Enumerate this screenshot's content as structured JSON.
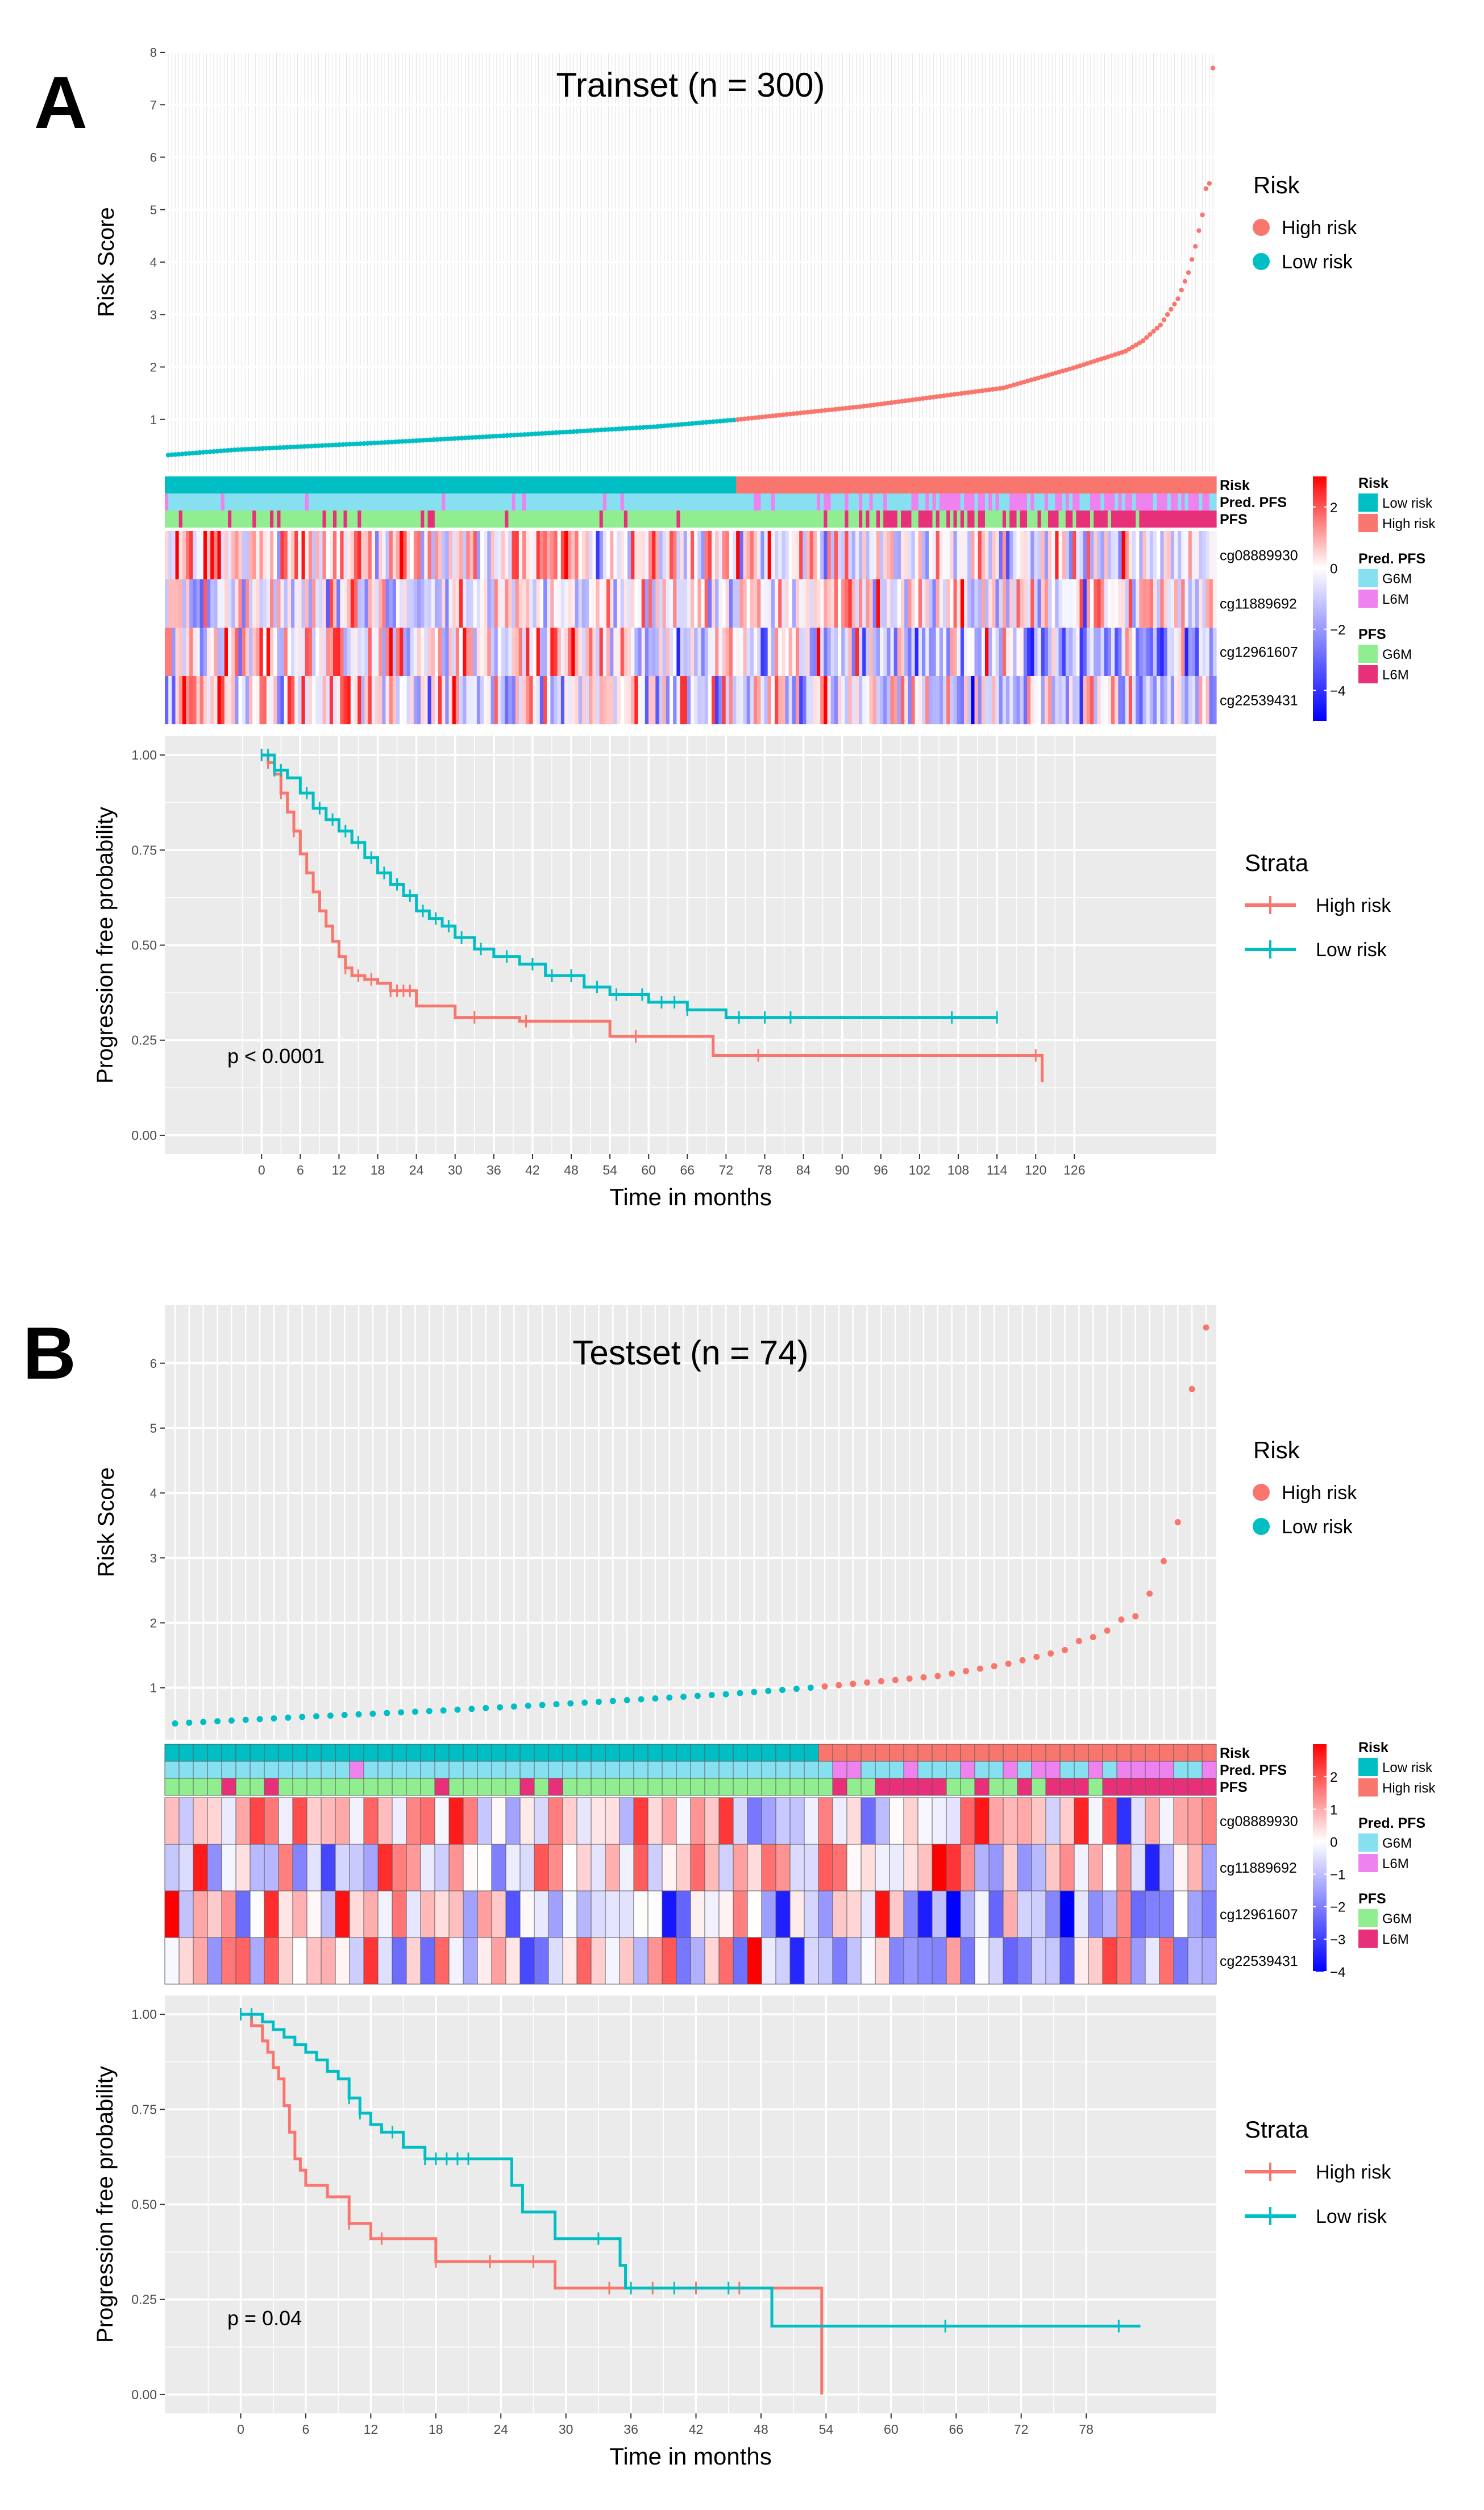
{
  "colors": {
    "high": "#F8766D",
    "low": "#00BFC4",
    "panel_bg": "#EBEBEB",
    "grid": "#FFFFFF",
    "heat_red": "#FF0000",
    "heat_white": "#FFFFFF",
    "heat_blue": "#0000FF",
    "g6m_pred": "#87E0F0",
    "l6m_pred": "#EE82EE",
    "g6m_pfs": "#90EE90",
    "l6m_pfs": "#E8307A"
  },
  "chart_data": [
    {
      "panel": "A",
      "type": "scatter",
      "title": "Trainset (n = 300)",
      "xlabel": "",
      "ylabel": "Risk Score",
      "n": 300,
      "n_low": 163,
      "x_range": [
        1,
        300
      ],
      "ylim": [
        0,
        8
      ],
      "yticks": [
        1,
        2,
        3,
        4,
        5,
        6,
        7,
        8
      ],
      "grid": true,
      "legend": {
        "title": "Risk",
        "entries": [
          "High risk",
          "Low risk"
        ],
        "position": "right"
      },
      "score_anchors": {
        "index": [
          1,
          20,
          60,
          100,
          140,
          163,
          200,
          240,
          260,
          275,
          280,
          285,
          290,
          293,
          295,
          297,
          298,
          299,
          300
        ],
        "score": [
          0.32,
          0.42,
          0.55,
          0.7,
          0.86,
          0.99,
          1.25,
          1.6,
          1.98,
          2.3,
          2.5,
          2.8,
          3.3,
          3.8,
          4.3,
          4.9,
          5.4,
          5.5,
          7.7
        ]
      }
    },
    {
      "panel": "A",
      "type": "heatmap",
      "n": 300,
      "n_low": 163,
      "annotation_rows": [
        "Risk",
        "Pred. PFS",
        "PFS"
      ],
      "rows": [
        "cg08889930",
        "cg11889692",
        "cg12961607",
        "cg22539431"
      ],
      "color_scale": {
        "min": -5,
        "mid": 0,
        "max": 3,
        "ticks": [
          2,
          0,
          -2,
          -4
        ]
      },
      "legends": [
        {
          "title": "Risk",
          "entries": [
            "Low risk",
            "High risk"
          ]
        },
        {
          "title": "Pred. PFS",
          "entries": [
            "G6M",
            "L6M"
          ]
        },
        {
          "title": "PFS",
          "entries": [
            "G6M",
            "L6M"
          ]
        }
      ]
    },
    {
      "panel": "A",
      "type": "line",
      "xlabel": "Time in months",
      "ylabel": "Progression free probability",
      "xlim": [
        -15,
        148
      ],
      "xticks": [
        0,
        6,
        12,
        18,
        24,
        30,
        36,
        42,
        48,
        54,
        60,
        66,
        72,
        78,
        84,
        90,
        96,
        102,
        108,
        114,
        120,
        126
      ],
      "ylim": [
        0,
        1
      ],
      "yticks": [
        "0.00",
        "0.25",
        "0.50",
        "0.75",
        "1.00"
      ],
      "pvalue": "p < 0.0001",
      "legend": {
        "title": "Strata",
        "entries": [
          "High risk",
          "Low risk"
        ],
        "position": "right"
      },
      "series": [
        {
          "name": "High risk",
          "x": [
            0,
            1,
            2,
            3,
            4,
            5,
            6,
            7,
            8,
            9,
            10,
            11,
            12,
            13,
            14,
            16,
            18,
            20,
            24,
            30,
            40,
            54,
            70,
            121
          ],
          "y": [
            1.0,
            0.98,
            0.95,
            0.9,
            0.85,
            0.8,
            0.74,
            0.69,
            0.64,
            0.59,
            0.55,
            0.51,
            0.47,
            0.44,
            0.42,
            0.41,
            0.4,
            0.38,
            0.34,
            0.31,
            0.3,
            0.26,
            0.21,
            0.14
          ],
          "censor_x": [
            0,
            1,
            3,
            5,
            13,
            15,
            17,
            20,
            21,
            22,
            23,
            33,
            41,
            58,
            77,
            120
          ]
        },
        {
          "name": "Low risk",
          "x": [
            0,
            2,
            4,
            6,
            8,
            10,
            12,
            14,
            16,
            18,
            20,
            22,
            24,
            26,
            28,
            30,
            33,
            36,
            40,
            44,
            50,
            54,
            60,
            66,
            72,
            114
          ],
          "y": [
            1.0,
            0.96,
            0.94,
            0.9,
            0.86,
            0.83,
            0.8,
            0.77,
            0.73,
            0.69,
            0.66,
            0.63,
            0.59,
            0.57,
            0.55,
            0.52,
            0.49,
            0.47,
            0.45,
            0.42,
            0.39,
            0.37,
            0.35,
            0.33,
            0.31,
            0.31
          ],
          "censor_x": [
            0,
            1,
            2,
            3,
            7,
            9,
            11,
            13,
            15,
            17,
            19,
            21,
            23,
            25,
            27,
            29,
            31,
            34,
            38,
            42,
            45,
            48,
            52,
            55,
            59,
            62,
            64,
            66,
            74,
            78,
            82,
            107,
            114
          ]
        }
      ]
    },
    {
      "panel": "B",
      "type": "scatter",
      "title": "Testset (n = 74)",
      "xlabel": "",
      "ylabel": "Risk Score",
      "n": 74,
      "n_low": 46,
      "x_range": [
        1,
        74
      ],
      "ylim": [
        0.2,
        6.9
      ],
      "yticks": [
        1,
        2,
        3,
        4,
        5,
        6
      ],
      "grid": true,
      "legend": {
        "title": "Risk",
        "entries": [
          "High risk",
          "Low risk"
        ],
        "position": "right"
      },
      "score_anchors": {
        "index": [
          1,
          10,
          20,
          30,
          40,
          46,
          47,
          55,
          60,
          64,
          65,
          66,
          67,
          68,
          69,
          70,
          71,
          72,
          73,
          74
        ],
        "score": [
          0.45,
          0.55,
          0.65,
          0.77,
          0.9,
          1.0,
          1.02,
          1.18,
          1.37,
          1.58,
          1.72,
          1.78,
          1.88,
          2.05,
          2.1,
          2.45,
          2.95,
          3.55,
          5.6,
          6.55
        ]
      }
    },
    {
      "panel": "B",
      "type": "heatmap",
      "n": 74,
      "n_low": 46,
      "annotation_rows": [
        "Risk",
        "Pred. PFS",
        "PFS"
      ],
      "rows": [
        "cg08889930",
        "cg11889692",
        "cg12961607",
        "cg22539431"
      ],
      "color_scale": {
        "min": -4,
        "mid": 0,
        "max": 3,
        "ticks": [
          2,
          1,
          0,
          -1,
          -2,
          -3,
          -4
        ]
      },
      "legends": [
        {
          "title": "Risk",
          "entries": [
            "Low risk",
            "High risk"
          ]
        },
        {
          "title": "Pred. PFS",
          "entries": [
            "G6M",
            "L6M"
          ]
        },
        {
          "title": "PFS",
          "entries": [
            "G6M",
            "L6M"
          ]
        }
      ]
    },
    {
      "panel": "B",
      "type": "line",
      "xlabel": "Time in months",
      "ylabel": "Progression free probability",
      "xlim": [
        -7,
        90
      ],
      "xticks": [
        0,
        6,
        12,
        18,
        24,
        30,
        36,
        42,
        48,
        54,
        60,
        66,
        72,
        78
      ],
      "ylim": [
        0,
        1
      ],
      "yticks": [
        "0.00",
        "0.25",
        "0.50",
        "0.75",
        "1.00"
      ],
      "pvalue": "p = 0.04",
      "legend": {
        "title": "Strata",
        "entries": [
          "High risk",
          "Low risk"
        ],
        "position": "right"
      },
      "series": [
        {
          "name": "High risk",
          "x": [
            0,
            1,
            2,
            2.5,
            3,
            3.5,
            4,
            4.5,
            5,
            5.5,
            6,
            8,
            10,
            12,
            18,
            29,
            53.5,
            53.6
          ],
          "y": [
            1.0,
            0.97,
            0.93,
            0.9,
            0.86,
            0.83,
            0.76,
            0.69,
            0.62,
            0.59,
            0.55,
            0.52,
            0.45,
            0.41,
            0.35,
            0.28,
            0.28,
            0.0
          ],
          "censor_x": [
            0,
            10,
            13,
            18,
            23,
            27,
            34,
            38,
            42,
            46
          ]
        },
        {
          "name": "Low risk",
          "x": [
            0,
            2,
            3,
            4,
            5,
            6,
            7,
            8,
            9,
            10,
            11,
            12,
            13,
            15,
            17,
            25,
            26,
            29,
            35,
            35.5,
            49,
            83
          ],
          "y": [
            1.0,
            0.98,
            0.96,
            0.94,
            0.92,
            0.9,
            0.88,
            0.85,
            0.83,
            0.78,
            0.74,
            0.71,
            0.69,
            0.65,
            0.62,
            0.55,
            0.48,
            0.41,
            0.34,
            0.28,
            0.18,
            0.18
          ],
          "censor_x": [
            0,
            1,
            10,
            11,
            14,
            17,
            18,
            19,
            20,
            21,
            33,
            36,
            40,
            45,
            65,
            81
          ]
        }
      ]
    }
  ],
  "panel_labels": [
    "A",
    "B"
  ]
}
